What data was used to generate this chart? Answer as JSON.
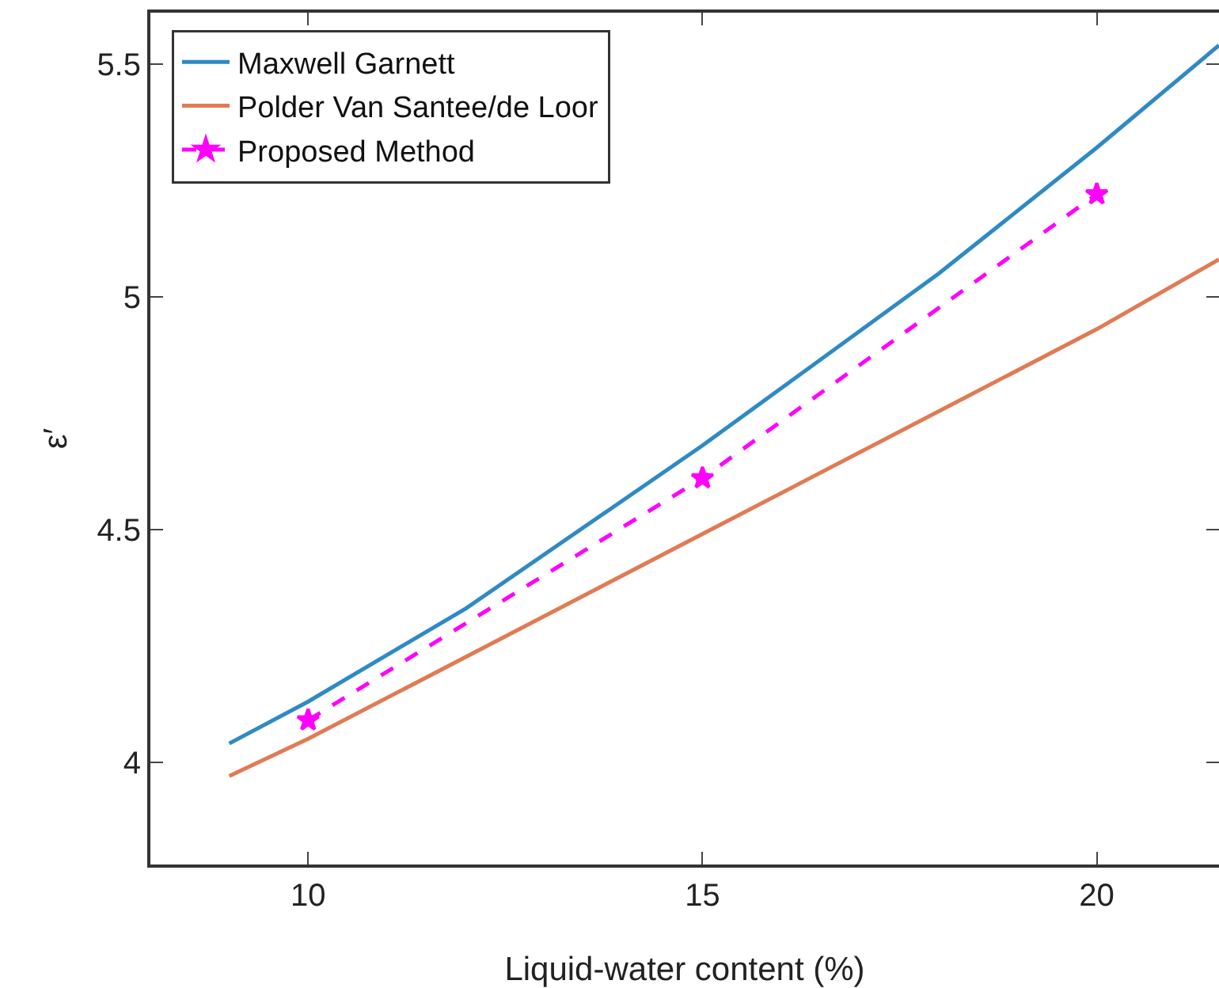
{
  "chart_data": {
    "type": "line",
    "xlabel": "Liquid-water content (%)",
    "ylabel": "ε′",
    "xlim": [
      8,
      21.55
    ],
    "xticks": [
      10,
      15,
      20
    ],
    "ylim": [
      3.78,
      5.61
    ],
    "yticks": [
      4,
      4.5,
      5,
      5.5
    ],
    "grid": false,
    "legend": "top left",
    "series": [
      {
        "name": "Maxwell Garnett",
        "color": "#2f8ac4",
        "x": [
          9,
          10,
          12,
          15,
          18,
          20,
          21.55
        ],
        "values": [
          4.04,
          4.13,
          4.33,
          4.68,
          5.05,
          5.32,
          5.54
        ],
        "marker": "none",
        "line_style": "solid"
      },
      {
        "name": "Polder Van Santee/de Loor",
        "color": "#e07b54",
        "x": [
          9,
          10,
          15,
          20,
          21.55
        ],
        "values": [
          3.97,
          4.05,
          4.49,
          4.93,
          5.08
        ],
        "marker": "none",
        "line_style": "solid"
      },
      {
        "name": "Proposed Method",
        "color": "#ff00ff",
        "x": [
          10,
          15,
          20
        ],
        "values": [
          4.09,
          4.61,
          5.22
        ],
        "marker": "star",
        "line_style": "dashed"
      }
    ]
  }
}
